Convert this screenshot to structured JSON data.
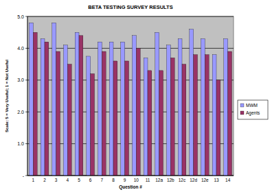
{
  "chart_data": {
    "type": "bar",
    "title": "BETA TESTING SURVEY RESULTS",
    "y_label": "Scale: 5 = Very Useful; 1 = Not Useful",
    "x_label": "Question #",
    "categories": [
      "1",
      "2",
      "3",
      "4",
      "5",
      "6",
      "7",
      "8",
      "9",
      "10",
      "11",
      "12a",
      "12b",
      "12c",
      "12d",
      "12e",
      "13",
      "14"
    ],
    "series": [
      {
        "name": "MWM",
        "color": "#9999ff",
        "values": [
          4.8,
          4.3,
          4.8,
          4.1,
          4.5,
          3.75,
          4.2,
          4.2,
          4.2,
          4.4,
          3.7,
          4.5,
          4.1,
          4.3,
          4.6,
          4.3,
          3.8,
          4.3
        ]
      },
      {
        "name": "Agents",
        "color": "#993366",
        "values": [
          4.5,
          4.2,
          3.9,
          3.5,
          4.4,
          3.2,
          3.9,
          3.6,
          3.6,
          4.0,
          3.3,
          3.3,
          3.7,
          3.5,
          3.8,
          3.8,
          3.0,
          3.9
        ]
      }
    ],
    "ylim": [
      0,
      5
    ],
    "yticks": [
      {
        "value": 0,
        "label": "-"
      },
      {
        "value": 1,
        "label": "1.0"
      },
      {
        "value": 2,
        "label": "2.0"
      },
      {
        "value": 3,
        "label": "3.0"
      },
      {
        "value": 4,
        "label": "4.0"
      },
      {
        "value": 5,
        "label": "5.0"
      }
    ],
    "grid": true,
    "legend": "right"
  }
}
